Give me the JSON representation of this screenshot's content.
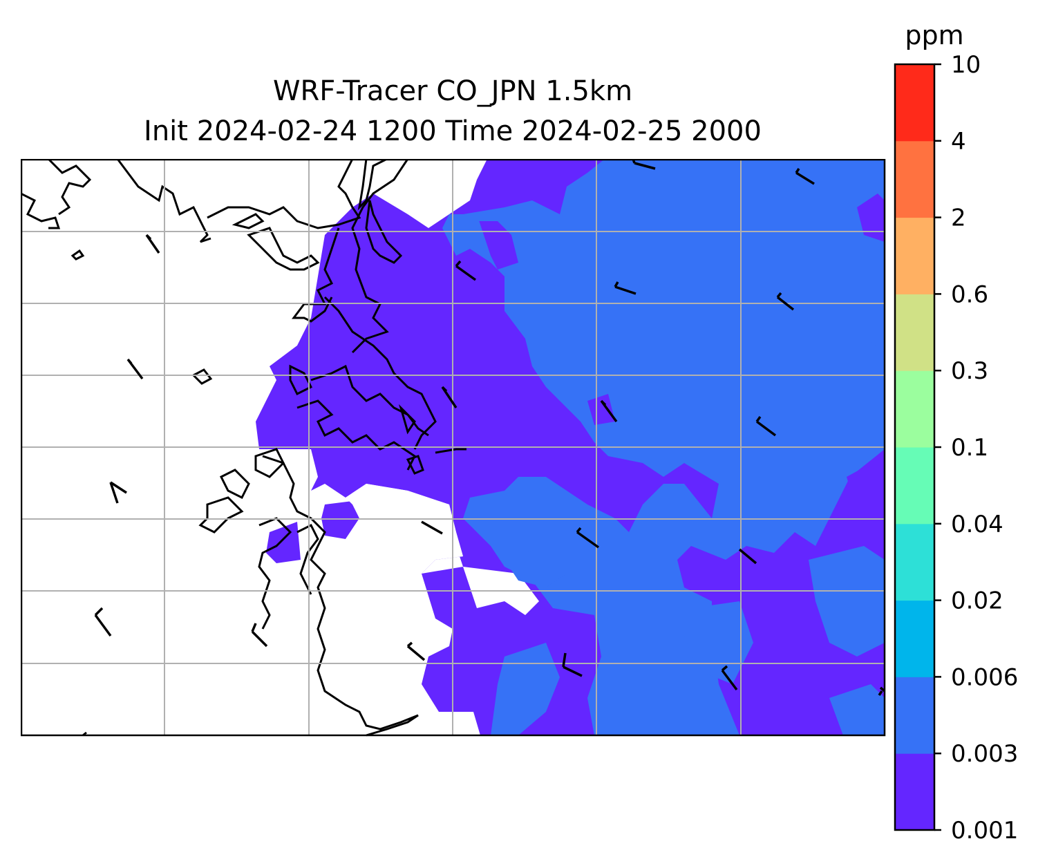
{
  "title": {
    "line1": "WRF-Tracer CO_JPN 1.5km",
    "line2": "Init 2024-02-24 1200 Time 2024-02-25 2000"
  },
  "colorbar": {
    "unit": "ppm",
    "levels": [
      "0.001",
      "0.003",
      "0.006",
      "0.02",
      "0.04",
      "0.1",
      "0.3",
      "0.6",
      "2",
      "4",
      "10"
    ],
    "colors": [
      "#6426ff",
      "#3672f6",
      "#00b5eb",
      "#2de0d7",
      "#66fcb6",
      "#9bfe9e",
      "#d0e186",
      "#ffb062",
      "#ff7240",
      "#ff2a1a"
    ]
  },
  "map": {
    "fill_colors": {
      "low": "#6426ff",
      "mid": "#3672f6",
      "none": "#ffffff"
    },
    "grid_color": "#b0b0b0",
    "coast_color": "#000000",
    "wind_barbs": "present"
  }
}
